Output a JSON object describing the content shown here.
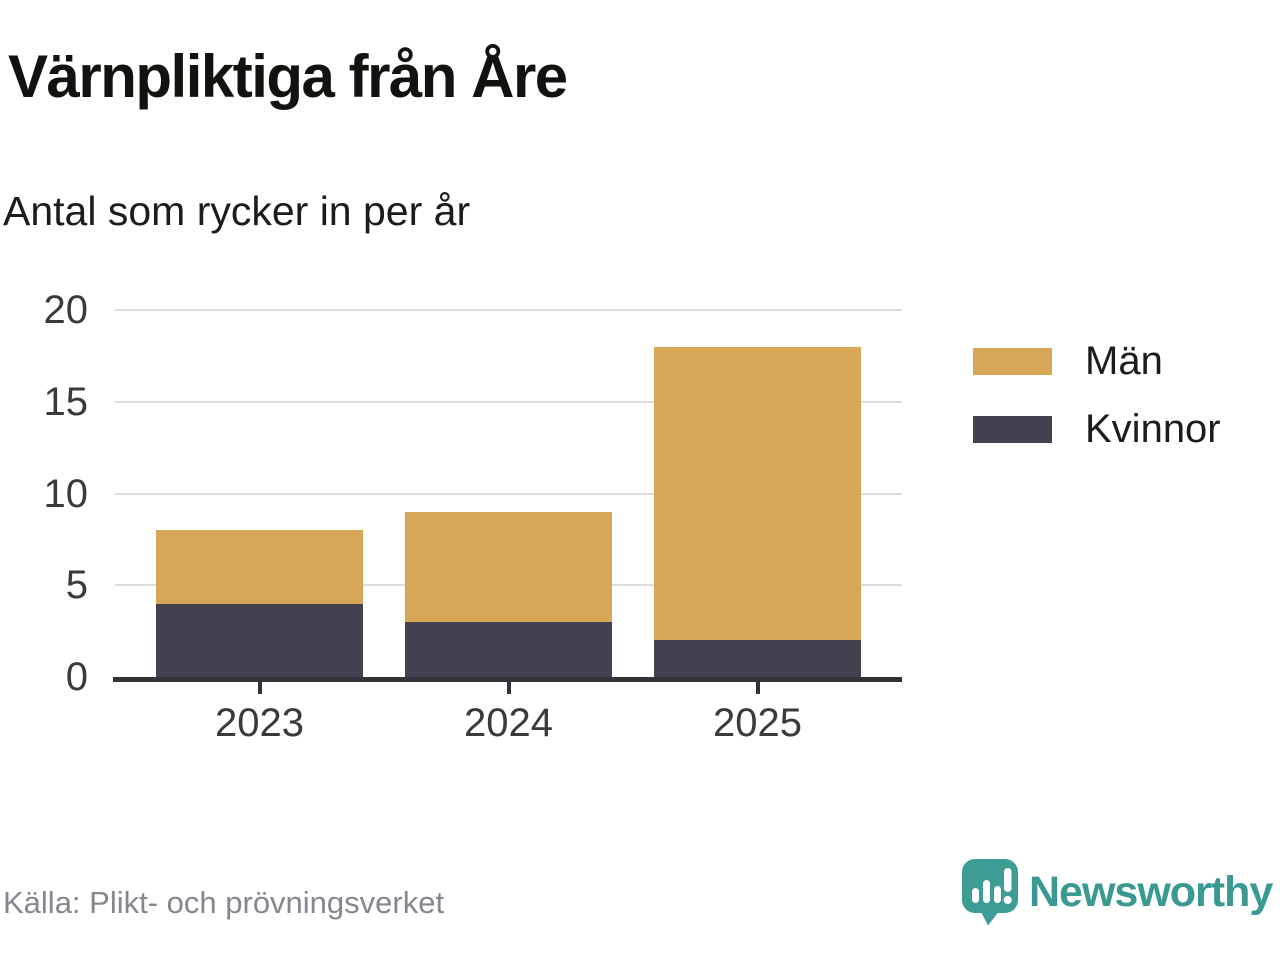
{
  "header": {
    "title": "Värnpliktiga från Åre",
    "subtitle": "Antal som rycker in per år"
  },
  "chart_data": {
    "type": "bar",
    "stacked": true,
    "title": "Värnpliktiga från Åre",
    "subtitle": "Antal som rycker in per år",
    "categories": [
      "2023",
      "2024",
      "2025"
    ],
    "series": [
      {
        "name": "Män",
        "color": "#d7a757",
        "values": [
          4,
          6,
          16
        ]
      },
      {
        "name": "Kvinnor",
        "color": "#434050",
        "values": [
          4,
          3,
          2
        ]
      }
    ],
    "stack_order_bottom_to_top": [
      "Kvinnor",
      "Män"
    ],
    "totals": [
      8,
      9,
      18
    ],
    "xlabel": "",
    "ylabel": "",
    "ylim": [
      0,
      20
    ],
    "yticks": [
      0,
      5,
      10,
      15,
      20
    ],
    "grid": true,
    "legend_position": "right"
  },
  "footer": {
    "source": "Källa: Plikt- och prövningsverket",
    "brand_name": "Newsworthy"
  },
  "colors": {
    "grid": "#dcdcdc",
    "axis": "#343239",
    "tick_label": "#3a3a3a",
    "teal": "#3a9a92",
    "men": "#d7a757",
    "women": "#434050",
    "source_text": "#87858d"
  }
}
